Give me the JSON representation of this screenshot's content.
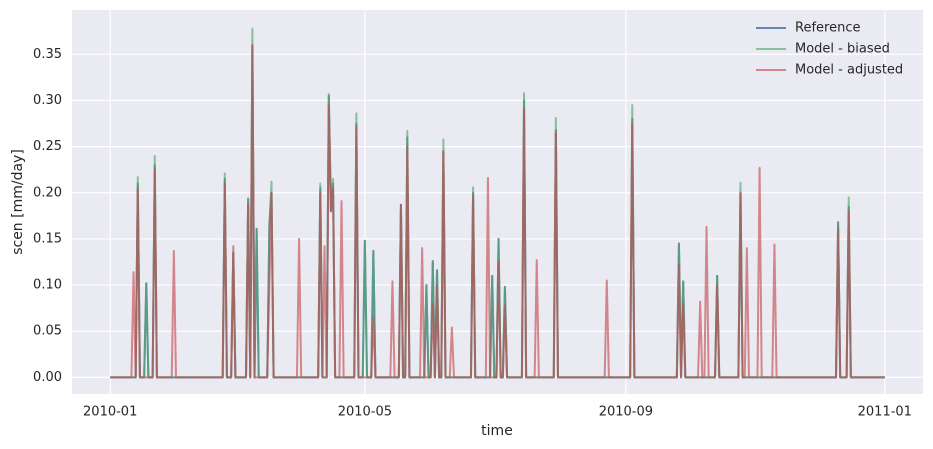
{
  "chart_data": {
    "type": "line",
    "x_label": "time",
    "y_label": "scen [mm/day]",
    "x": [
      0,
      10,
      11,
      12,
      13,
      14,
      16,
      17,
      18,
      20,
      21,
      22,
      29,
      30,
      31,
      53,
      54,
      55,
      57,
      58,
      59,
      64,
      65,
      66,
      67,
      68,
      69,
      70,
      74,
      75,
      76,
      77,
      88,
      89,
      90,
      98,
      99,
      100,
      101,
      102,
      103,
      104,
      105,
      106,
      108,
      109,
      110,
      115,
      116,
      117,
      119,
      120,
      121,
      123,
      124,
      125,
      132,
      133,
      134,
      136,
      137,
      138,
      139,
      140,
      141,
      146,
      147,
      148,
      149,
      150,
      151,
      152,
      153,
      154,
      155,
      156,
      157,
      158,
      160,
      161,
      162,
      170,
      171,
      172,
      177,
      178,
      179,
      180,
      181,
      182,
      183,
      184,
      185,
      186,
      187,
      194,
      195,
      196,
      200,
      201,
      202,
      209,
      210,
      211,
      233,
      234,
      235,
      245,
      246,
      247,
      267,
      268,
      269,
      270,
      271,
      277,
      278,
      279,
      280,
      281,
      282,
      285,
      286,
      287,
      296,
      297,
      298,
      299,
      300,
      301,
      305,
      306,
      307,
      312,
      313,
      314,
      342,
      343,
      344,
      347,
      348,
      349,
      365
    ],
    "series": [
      {
        "name": "Reference",
        "color": "#4c72b0",
        "values": [
          0,
          0,
          0,
          0,
          0.21,
          0,
          0,
          0.102,
          0,
          0,
          0.23,
          0,
          0,
          0,
          0,
          0,
          0.215,
          0,
          0,
          0.135,
          0,
          0,
          0.193,
          0,
          0.36,
          0,
          0.161,
          0,
          0,
          0.165,
          0.2,
          0,
          0,
          0,
          0,
          0,
          0.205,
          0,
          0,
          0,
          0.305,
          0.18,
          0.21,
          0,
          0,
          0,
          0,
          0,
          0.275,
          0,
          0,
          0.148,
          0,
          0,
          0.137,
          0,
          0,
          0,
          0,
          0,
          0.187,
          0,
          0,
          0.26,
          0,
          0,
          0,
          0,
          0.1,
          0,
          0,
          0.126,
          0,
          0.116,
          0,
          0,
          0.245,
          0,
          0,
          0,
          0,
          0,
          0.2,
          0,
          0,
          0,
          0,
          0.11,
          0,
          0,
          0.15,
          0,
          0,
          0.098,
          0,
          0,
          0.3,
          0,
          0,
          0,
          0,
          0,
          0.268,
          0,
          0,
          0,
          0,
          0,
          0.28,
          0,
          0,
          0.145,
          0,
          0.104,
          0,
          0,
          0,
          0,
          0,
          0,
          0,
          0,
          0.11,
          0,
          0,
          0.2,
          0,
          0,
          0,
          0,
          0,
          0,
          0,
          0,
          0,
          0,
          0,
          0.168,
          0,
          0,
          0.185,
          0,
          0
        ]
      },
      {
        "name": "Model - biased",
        "color": "#55a868",
        "values": [
          0,
          0,
          0,
          0,
          0.217,
          0,
          0,
          0.102,
          0,
          0,
          0.24,
          0,
          0,
          0,
          0,
          0,
          0.221,
          0,
          0,
          0.135,
          0,
          0,
          0.194,
          0,
          0.378,
          0,
          0.161,
          0,
          0,
          0.165,
          0.212,
          0,
          0,
          0,
          0,
          0,
          0.21,
          0,
          0,
          0,
          0.307,
          0.19,
          0.215,
          0,
          0,
          0,
          0,
          0,
          0.286,
          0,
          0,
          0.148,
          0,
          0,
          0.137,
          0,
          0,
          0,
          0,
          0,
          0.187,
          0,
          0,
          0.267,
          0,
          0,
          0,
          0,
          0.1,
          0,
          0,
          0.126,
          0,
          0.116,
          0,
          0,
          0.258,
          0,
          0,
          0,
          0,
          0,
          0.206,
          0,
          0,
          0,
          0,
          0.11,
          0,
          0,
          0.15,
          0,
          0,
          0.098,
          0,
          0,
          0.308,
          0,
          0,
          0,
          0,
          0,
          0.281,
          0,
          0,
          0,
          0,
          0,
          0.295,
          0,
          0,
          0.145,
          0,
          0.104,
          0,
          0,
          0,
          0,
          0,
          0,
          0,
          0,
          0.11,
          0,
          0,
          0.211,
          0,
          0,
          0,
          0,
          0,
          0,
          0,
          0,
          0,
          0,
          0,
          0.168,
          0,
          0,
          0.195,
          0,
          0
        ]
      },
      {
        "name": "Model - adjusted",
        "color": "#c44e52",
        "values": [
          0,
          0,
          0.114,
          0,
          0.205,
          0,
          0,
          0,
          0,
          0,
          0.225,
          0,
          0,
          0.137,
          0,
          0,
          0.21,
          0,
          0,
          0.142,
          0,
          0,
          0.188,
          0,
          0.36,
          0,
          0,
          0,
          0,
          0.1,
          0.2,
          0,
          0,
          0.15,
          0,
          0,
          0.2,
          0,
          0.142,
          0,
          0.295,
          0.18,
          0.205,
          0,
          0,
          0.191,
          0,
          0,
          0.272,
          0,
          0,
          0,
          0,
          0,
          0.065,
          0,
          0,
          0.104,
          0,
          0,
          0.187,
          0,
          0,
          0.25,
          0,
          0,
          0.14,
          0,
          0,
          0,
          0,
          0.08,
          0,
          0.1,
          0,
          0,
          0.245,
          0,
          0,
          0.054,
          0,
          0,
          0.197,
          0,
          0,
          0.216,
          0,
          0,
          0,
          0,
          0.125,
          0,
          0,
          0.078,
          0,
          0,
          0.29,
          0,
          0,
          0.127,
          0,
          0,
          0.265,
          0,
          0,
          0.105,
          0,
          0,
          0.275,
          0,
          0,
          0.122,
          0,
          0.08,
          0,
          0,
          0.082,
          0,
          0,
          0.163,
          0,
          0,
          0.1,
          0,
          0,
          0.2,
          0,
          0,
          0.14,
          0,
          0,
          0.227,
          0,
          0,
          0.144,
          0,
          0,
          0.16,
          0,
          0,
          0.18,
          0,
          0
        ]
      }
    ],
    "xlim": [
      -18,
      383
    ],
    "xticks": [
      {
        "value": 0,
        "label": "2010-01"
      },
      {
        "value": 120,
        "label": "2010-05"
      },
      {
        "value": 243,
        "label": "2010-09"
      },
      {
        "value": 365,
        "label": "2011-01"
      }
    ],
    "ylim": [
      -0.018,
      0.398
    ],
    "yticks": [
      {
        "value": 0,
        "label": "0.00"
      },
      {
        "value": 0.05,
        "label": "0.05"
      },
      {
        "value": 0.1,
        "label": "0.10"
      },
      {
        "value": 0.15,
        "label": "0.15"
      },
      {
        "value": 0.2,
        "label": "0.20"
      },
      {
        "value": 0.25,
        "label": "0.25"
      },
      {
        "value": 0.3,
        "label": "0.30"
      },
      {
        "value": 0.35,
        "label": "0.35"
      }
    ],
    "grid": true,
    "legend": "upper right"
  }
}
